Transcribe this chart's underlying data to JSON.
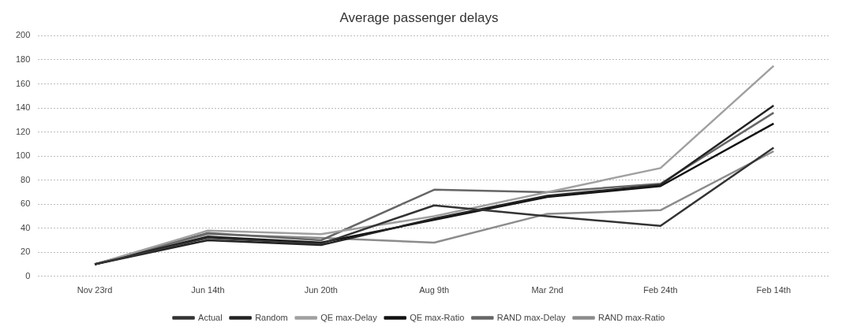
{
  "chart_data": {
    "type": "line",
    "title": "Average passenger delays",
    "categories": [
      "Nov 23rd",
      "Jun 14th",
      "Jun 20th",
      "Aug 9th",
      "Mar 2nd",
      "Feb 24th",
      "Feb 14th"
    ],
    "series": [
      {
        "name": "Actual",
        "color": "#333333",
        "values": [
          10,
          32,
          27,
          59,
          50,
          42,
          107
        ]
      },
      {
        "name": "Random",
        "color": "#222222",
        "values": [
          10,
          30,
          26,
          48,
          67,
          76,
          142
        ]
      },
      {
        "name": "QE max-Delay",
        "color": "#a0a0a0",
        "values": [
          10,
          38,
          35,
          50,
          70,
          90,
          175
        ]
      },
      {
        "name": "QE max-Ratio",
        "color": "#111111",
        "values": [
          10,
          33,
          28,
          47,
          66,
          75,
          127
        ]
      },
      {
        "name": "RAND max-Delay",
        "color": "#666666",
        "values": [
          10,
          36,
          30,
          72,
          70,
          77,
          136
        ]
      },
      {
        "name": "RAND max-Ratio",
        "color": "#8c8c8c",
        "values": [
          10,
          35,
          32,
          28,
          52,
          55,
          104
        ]
      }
    ],
    "ylim": [
      0,
      200
    ],
    "yticks": [
      0,
      20,
      40,
      60,
      80,
      100,
      120,
      140,
      160,
      180,
      200
    ],
    "grid": "y",
    "legend": "bottom",
    "marker": "none",
    "line_style": "solid"
  }
}
